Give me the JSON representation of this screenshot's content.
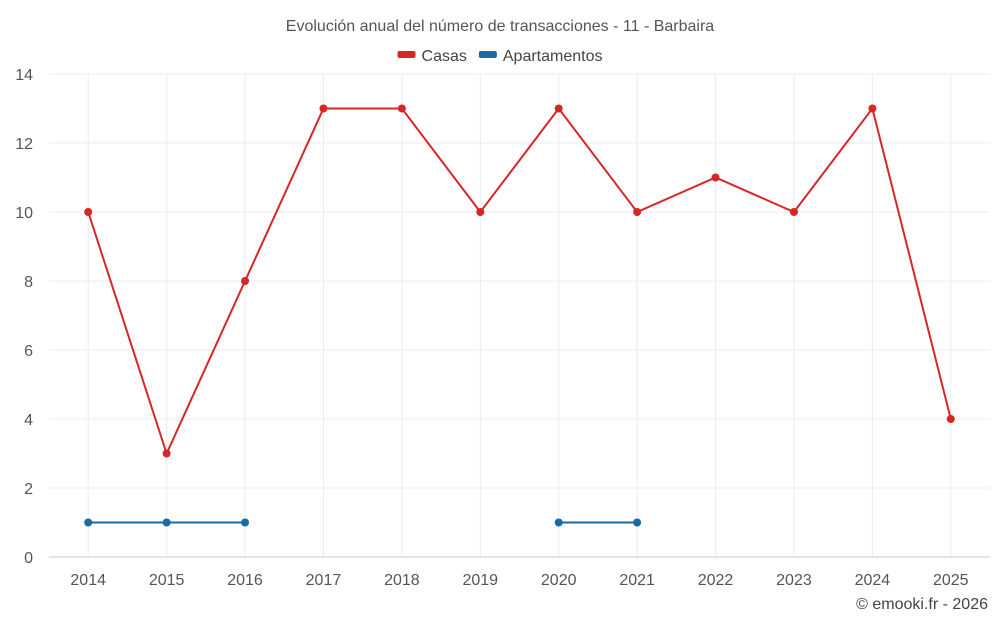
{
  "chart_data": {
    "type": "line",
    "title": "Evolución anual del número de transacciones - 11 - Barbaira",
    "categories": [
      "2014",
      "2015",
      "2016",
      "2017",
      "2018",
      "2019",
      "2020",
      "2021",
      "2022",
      "2023",
      "2024",
      "2025"
    ],
    "series": [
      {
        "name": "Casas",
        "color": "#d62728",
        "values": [
          10,
          3,
          8,
          13,
          13,
          10,
          13,
          10,
          11,
          10,
          13,
          4
        ]
      },
      {
        "name": "Apartamentos",
        "color": "#1a6aa5",
        "values": [
          1,
          1,
          1,
          null,
          null,
          null,
          1,
          1,
          null,
          null,
          null,
          null
        ]
      }
    ],
    "ylim": [
      0,
      14
    ],
    "yticks": [
      "0",
      "2",
      "4",
      "6",
      "8",
      "10",
      "12",
      "14"
    ],
    "xlabel": "",
    "ylabel": "",
    "grid": true,
    "legend": "top-center"
  },
  "credit": "© emooki.fr - 2026"
}
